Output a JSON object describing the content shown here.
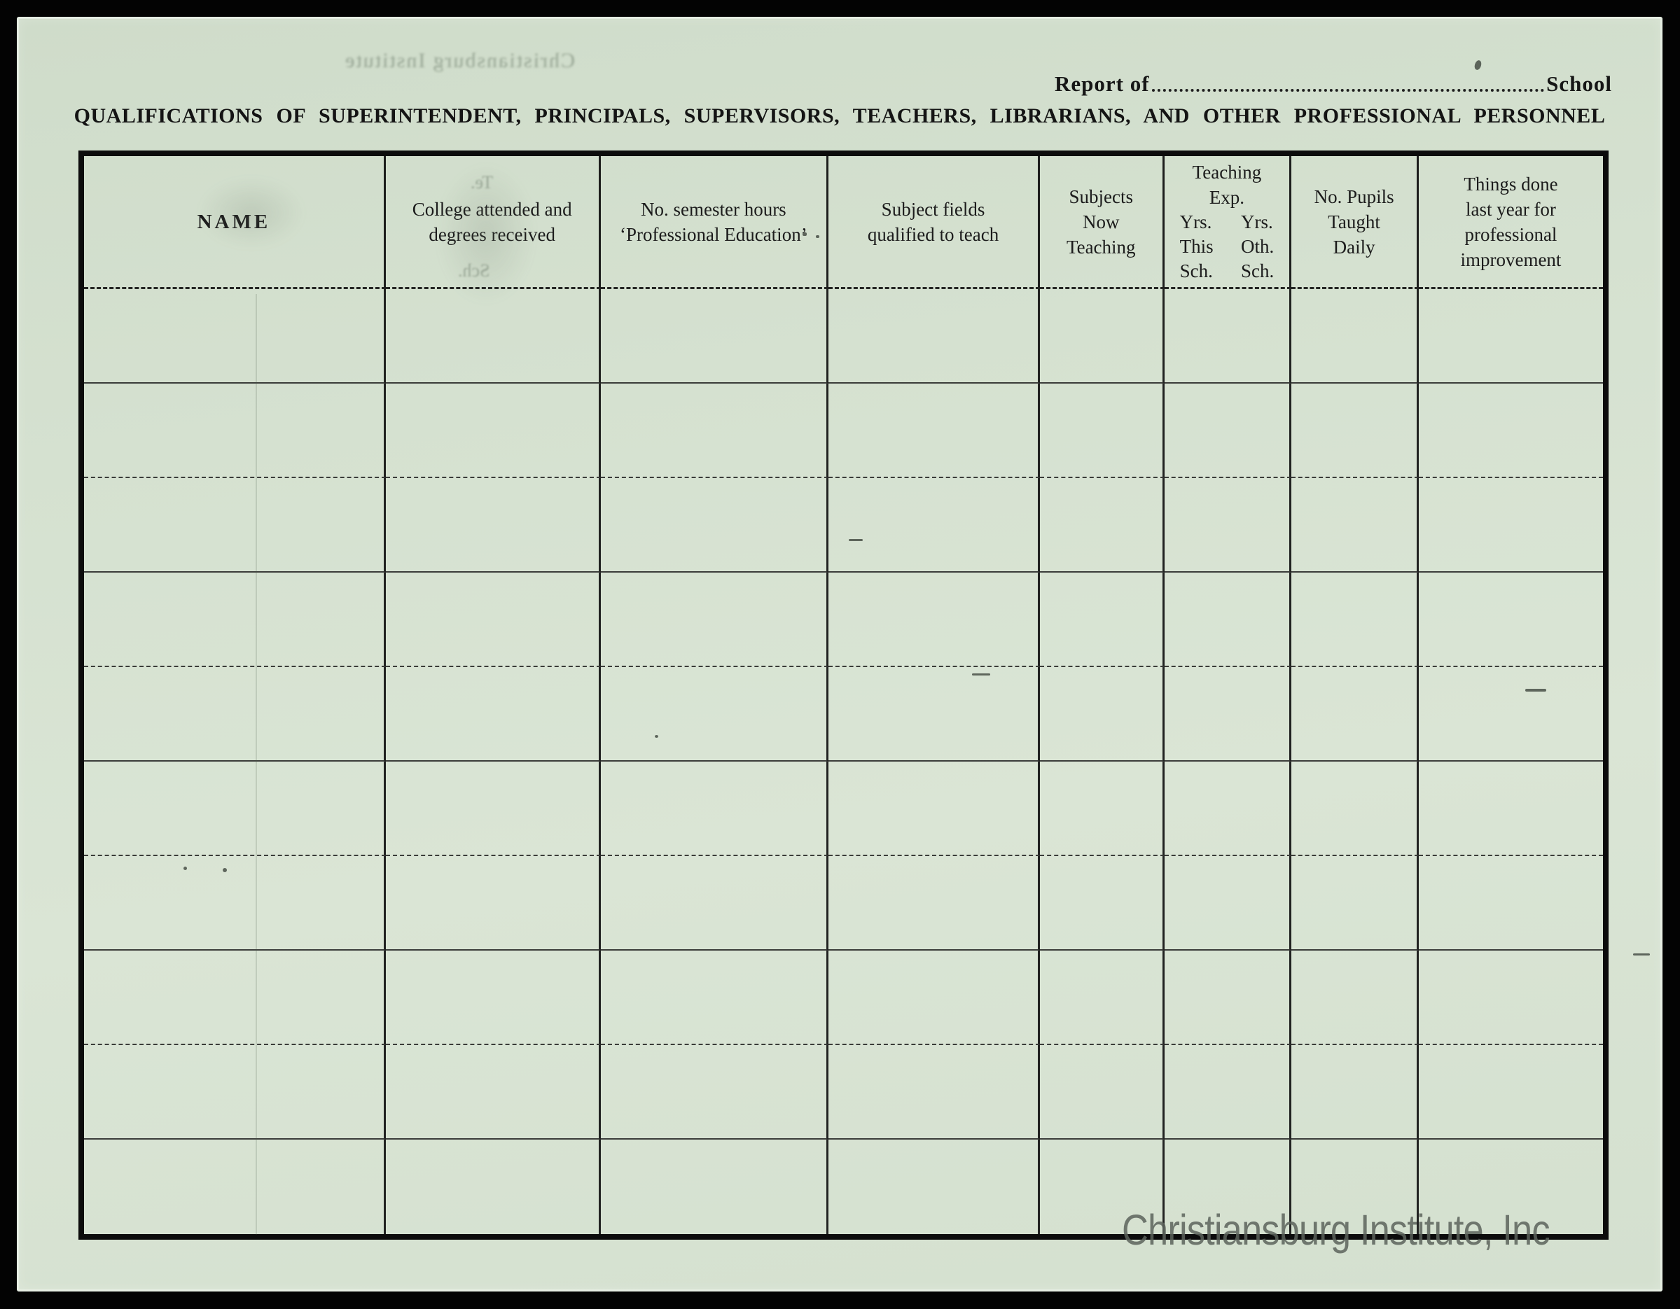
{
  "document": {
    "report_line": {
      "prefix": "Report of",
      "suffix": "School"
    },
    "title": "QUALIFICATIONS OF SUPERINTENDENT, PRINCIPALS, SUPERVISORS, TEACHERS, LIBRARIANS, AND OTHER PROFESSIONAL PERSONNEL",
    "watermark": "Christiansburg Institute, Inc",
    "artifacts": {
      "ghost_top": "Christiansburg Institute",
      "ghost_marks": [
        "Te.",
        "Sch."
      ]
    }
  },
  "table": {
    "row_count": 10,
    "columns": [
      {
        "id": "name",
        "lines": [
          "NAME"
        ]
      },
      {
        "id": "college-degrees",
        "lines": [
          "College attended and",
          "degrees received"
        ]
      },
      {
        "id": "semester-hours",
        "lines": [
          "No. semester hours",
          "‘Professional Education’"
        ]
      },
      {
        "id": "subject-fields",
        "lines": [
          "Subject fields",
          "qualified to teach"
        ]
      },
      {
        "id": "subjects-now-teaching",
        "lines": [
          "Subjects",
          "Now",
          "Teaching"
        ]
      },
      {
        "id": "teaching-experience",
        "lines": [
          "Teaching",
          "Exp."
        ],
        "sub_columns": {
          "left": [
            "Yrs.",
            "This",
            "Sch."
          ],
          "right": [
            "Yrs.",
            "Oth.",
            "Sch."
          ]
        }
      },
      {
        "id": "pupils-daily",
        "lines": [
          "No. Pupils",
          "Taught",
          "Daily"
        ]
      },
      {
        "id": "professional-improvement",
        "lines": [
          "Things done",
          "last year for",
          "professional",
          "improvement"
        ]
      }
    ]
  },
  "colors": {
    "background": "#030303",
    "paper": "#d6e2d1",
    "ink": "#1b1b1b",
    "table_border": "#0c0c0c",
    "watermark": "#5f665f"
  }
}
